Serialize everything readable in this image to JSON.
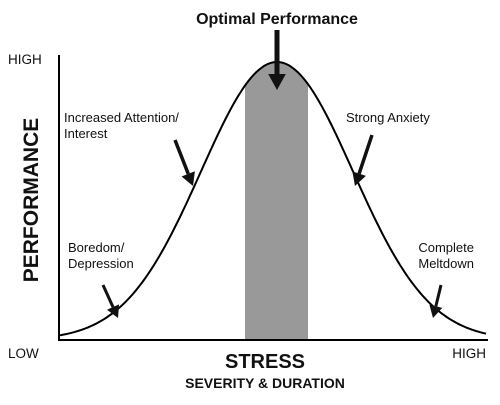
{
  "title": "Optimal Performance",
  "y_axis": {
    "label": "PERFORMANCE",
    "high": "HIGH",
    "low": "LOW"
  },
  "x_axis": {
    "label": "STRESS",
    "sublabel": "SEVERITY & DURATION",
    "high": "HIGH"
  },
  "annotations": {
    "attention": [
      "Increased Attention/",
      "Interest"
    ],
    "anxiety": [
      "Strong Anxiety"
    ],
    "boredom": [
      "Boredom/",
      "Depression"
    ],
    "meltdown": [
      "Complete",
      "Meltdown"
    ]
  }
}
